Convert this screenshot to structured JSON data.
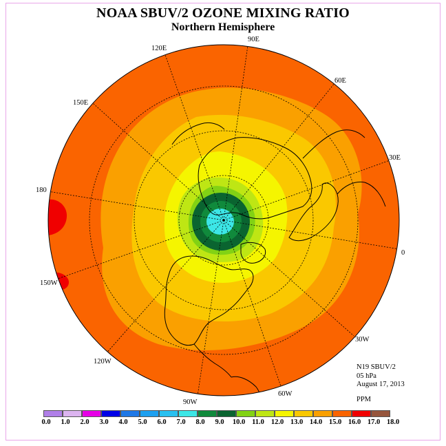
{
  "header": {
    "title": "NOAA SBUV/2 OZONE MIXING RATIO",
    "subtitle": "Northern Hemisphere"
  },
  "longitude_labels": [
    "90E",
    "60E",
    "30E",
    "0",
    "30W",
    "60W",
    "90W",
    "120W",
    "150W",
    "180",
    "150E",
    "120E"
  ],
  "info": {
    "instrument": "N19 SBUV/2",
    "level": "05 hPa",
    "date": "August 17, 2013",
    "units": "PPM"
  },
  "colorbar": {
    "colors": [
      "#b07fe8",
      "#dcb4f0",
      "#e600e6",
      "#0000e6",
      "#1f78e6",
      "#1ea0f0",
      "#28c0f0",
      "#3ce6e6",
      "#108a3c",
      "#0a6430",
      "#82d214",
      "#bee614",
      "#f5f500",
      "#fac800",
      "#faa000",
      "#fa6400",
      "#f00000",
      "#96553c"
    ],
    "ticks": [
      "0.0",
      "1.0",
      "2.0",
      "3.0",
      "4.0",
      "5.0",
      "6.0",
      "7.0",
      "8.0",
      "9.0",
      "10.0",
      "11.0",
      "12.0",
      "13.0",
      "14.0",
      "15.0",
      "16.0",
      "17.0",
      "18.0"
    ]
  }
}
